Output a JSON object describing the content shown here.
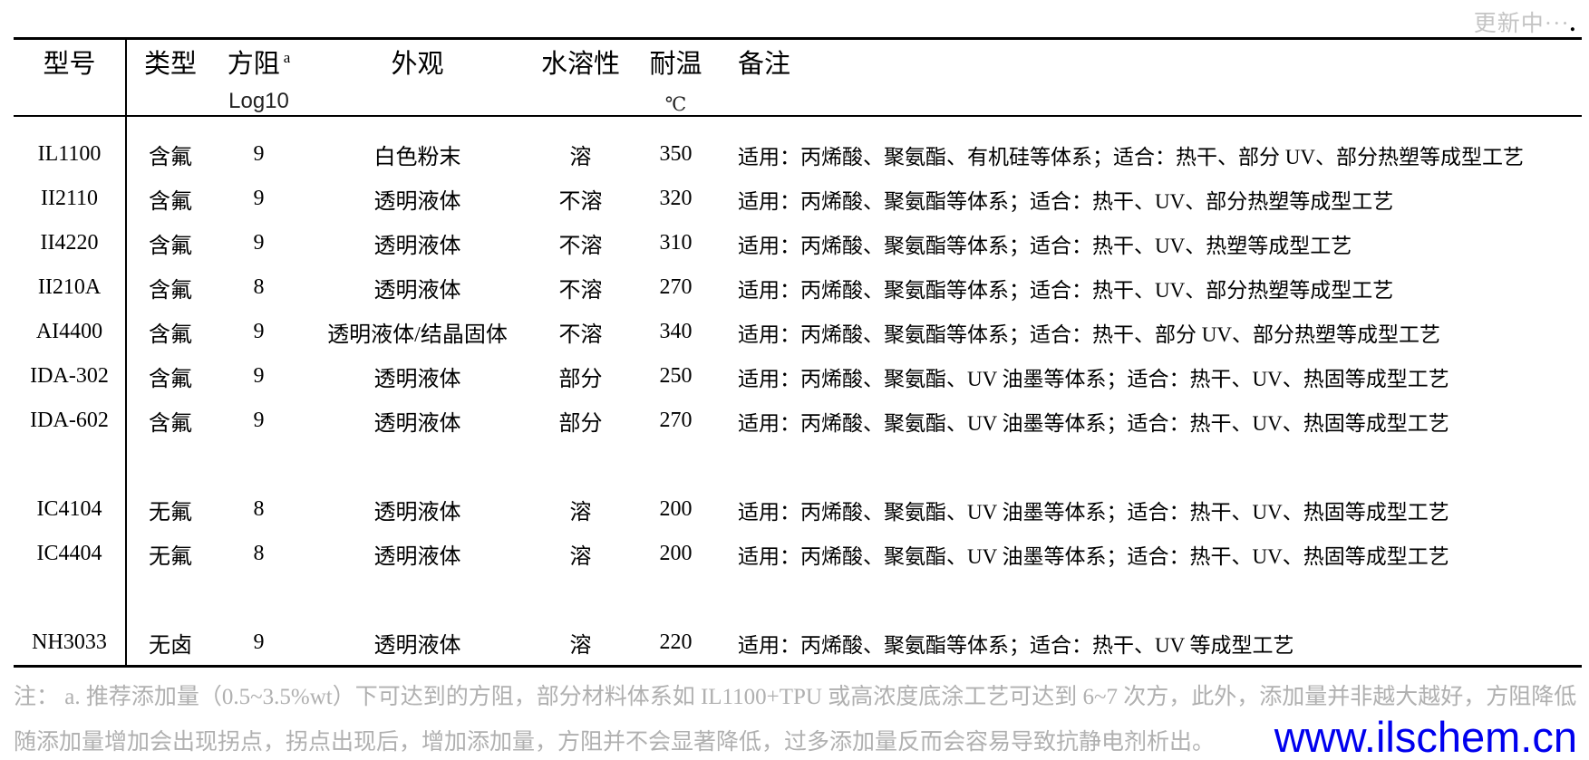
{
  "status": {
    "label": "更新中···",
    "suffix": "."
  },
  "table": {
    "columns": [
      {
        "key": "model",
        "label": "型号",
        "sup": "",
        "sub": ""
      },
      {
        "key": "type",
        "label": "类型",
        "sup": "",
        "sub": ""
      },
      {
        "key": "resistance",
        "label": "方阻",
        "sup": "a",
        "sub": "Log10"
      },
      {
        "key": "appearance",
        "label": "外观",
        "sup": "",
        "sub": ""
      },
      {
        "key": "solubility",
        "label": "水溶性",
        "sup": "",
        "sub": ""
      },
      {
        "key": "temp",
        "label": "耐温",
        "sup": "",
        "sub": "℃"
      },
      {
        "key": "remark",
        "label": "备注",
        "sup": "",
        "sub": ""
      }
    ],
    "rows": [
      {
        "model": "IL1100",
        "type": "含氟",
        "resistance": "9",
        "appearance": "白色粉末",
        "solubility": "溶",
        "temp": "350",
        "remark": "适用：丙烯酸、聚氨酯、有机硅等体系；适合：热干、部分 UV、部分热塑等成型工艺"
      },
      {
        "model": "II2110",
        "type": "含氟",
        "resistance": "9",
        "appearance": "透明液体",
        "solubility": "不溶",
        "temp": "320",
        "remark": "适用：丙烯酸、聚氨酯等体系；适合：热干、UV、部分热塑等成型工艺"
      },
      {
        "model": "II4220",
        "type": "含氟",
        "resistance": "9",
        "appearance": "透明液体",
        "solubility": "不溶",
        "temp": "310",
        "remark": "适用：丙烯酸、聚氨酯等体系；适合：热干、UV、热塑等成型工艺"
      },
      {
        "model": "II210A",
        "type": "含氟",
        "resistance": "8",
        "appearance": "透明液体",
        "solubility": "不溶",
        "temp": "270",
        "remark": "适用：丙烯酸、聚氨酯等体系；适合：热干、UV、部分热塑等成型工艺"
      },
      {
        "model": "AI4400",
        "type": "含氟",
        "resistance": "9",
        "appearance": "透明液体/结晶固体",
        "solubility": "不溶",
        "temp": "340",
        "remark": "适用：丙烯酸、聚氨酯等体系；适合：热干、部分 UV、部分热塑等成型工艺"
      },
      {
        "model": "IDA-302",
        "type": "含氟",
        "resistance": "9",
        "appearance": "透明液体",
        "solubility": "部分",
        "temp": "250",
        "remark": "适用：丙烯酸、聚氨酯、UV 油墨等体系；适合：热干、UV、热固等成型工艺"
      },
      {
        "model": "IDA-602",
        "type": "含氟",
        "resistance": "9",
        "appearance": "透明液体",
        "solubility": "部分",
        "temp": "270",
        "remark": "适用：丙烯酸、聚氨酯、UV 油墨等体系；适合：热干、UV、热固等成型工艺"
      },
      {
        "model": "",
        "type": "",
        "resistance": "",
        "appearance": "",
        "solubility": "",
        "temp": "",
        "remark": ""
      },
      {
        "model": "IC4104",
        "type": "无氟",
        "resistance": "8",
        "appearance": "透明液体",
        "solubility": "溶",
        "temp": "200",
        "remark": "适用：丙烯酸、聚氨酯、UV 油墨等体系；适合：热干、UV、热固等成型工艺"
      },
      {
        "model": "IC4404",
        "type": "无氟",
        "resistance": "8",
        "appearance": "透明液体",
        "solubility": "溶",
        "temp": "200",
        "remark": "适用：丙烯酸、聚氨酯、UV 油墨等体系；适合：热干、UV、热固等成型工艺"
      },
      {
        "model": "",
        "type": "",
        "resistance": "",
        "appearance": "",
        "solubility": "",
        "temp": "",
        "remark": ""
      },
      {
        "model": "NH3033",
        "type": "无卤",
        "resistance": "9",
        "appearance": "透明液体",
        "solubility": "溶",
        "temp": "220",
        "remark": "适用：丙烯酸、聚氨酯等体系；适合：热干、UV 等成型工艺"
      }
    ]
  },
  "footnote": {
    "text": "注：  a. 推荐添加量（0.5~3.5%wt）下可达到的方阻，部分材料体系如 IL1100+TPU 或高浓度底涂工艺可达到 6~7 次方，此外，添加量并非越大越好，方阻降低随添加量增加会出现拐点，拐点出现后，增加添加量，方阻并不会显著降低，过多添加量反而会容易导致抗静电剂析出。"
  },
  "watermark": {
    "text": "www.ilschem.cn",
    "color": "#0000ee"
  }
}
